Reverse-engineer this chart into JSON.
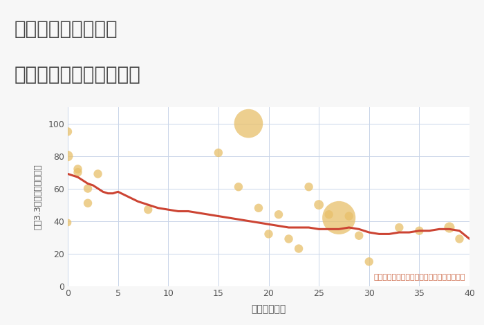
{
  "title_line1": "埼玉県鴻巣市川面の",
  "title_line2": "築年数別中古戸建て価格",
  "xlabel": "築年数（年）",
  "ylabel": "坪（3.3㎡）単価（万円）",
  "annotation": "円の大きさは、取引のあった物件面積を示す",
  "background_color": "#f7f7f7",
  "plot_bg_color": "#ffffff",
  "grid_color": "#c8d4e8",
  "bubble_color": "#e8c06a",
  "bubble_alpha": 0.75,
  "line_color": "#cc4433",
  "line_width": 2.2,
  "xlim": [
    0,
    40
  ],
  "ylim": [
    0,
    110
  ],
  "xticks": [
    0,
    5,
    10,
    15,
    20,
    25,
    30,
    35,
    40
  ],
  "yticks": [
    0,
    20,
    40,
    60,
    80,
    100
  ],
  "scatter_x": [
    0,
    0,
    0,
    1,
    1,
    2,
    2,
    3,
    8,
    15,
    17,
    18,
    19,
    20,
    21,
    22,
    23,
    24,
    25,
    26,
    27,
    28,
    29,
    30,
    33,
    35,
    38,
    39
  ],
  "scatter_y": [
    95,
    80,
    39,
    70,
    72,
    60,
    51,
    69,
    47,
    82,
    61,
    100,
    48,
    32,
    44,
    29,
    23,
    61,
    50,
    44,
    42,
    43,
    31,
    15,
    36,
    34,
    36,
    29
  ],
  "scatter_size": [
    80,
    120,
    60,
    80,
    80,
    80,
    80,
    80,
    80,
    80,
    80,
    900,
    80,
    80,
    80,
    80,
    80,
    80,
    100,
    80,
    1200,
    80,
    80,
    80,
    80,
    80,
    120,
    80
  ],
  "line_x": [
    0,
    0.5,
    1,
    1.5,
    2,
    2.5,
    3,
    3.5,
    4,
    4.5,
    5,
    6,
    7,
    8,
    9,
    10,
    11,
    12,
    13,
    14,
    15,
    16,
    17,
    18,
    19,
    20,
    21,
    22,
    23,
    24,
    25,
    26,
    27,
    28,
    29,
    30,
    31,
    32,
    33,
    34,
    35,
    36,
    37,
    38,
    39,
    40
  ],
  "line_y": [
    69,
    68,
    67,
    65,
    63,
    62,
    60,
    58,
    57,
    57,
    58,
    55,
    52,
    50,
    48,
    47,
    46,
    46,
    45,
    44,
    43,
    42,
    41,
    40,
    39,
    38,
    37,
    36,
    36,
    36,
    35,
    35,
    35,
    36,
    35,
    33,
    32,
    32,
    33,
    33,
    34,
    34,
    35,
    35,
    34,
    29
  ],
  "title_fontsize": 20,
  "tick_fontsize": 9,
  "label_fontsize": 10,
  "annot_fontsize": 8
}
